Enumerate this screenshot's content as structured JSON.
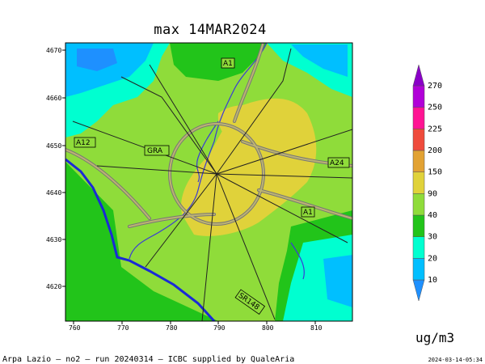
{
  "title": "max 14MAR2024",
  "unit": "ug/m3",
  "footer": "Arpa Lazio — no2 — run 20240314 — ICBC supplied by QualeAria",
  "timestamp": "2024-03-14-05:34",
  "x_ticks": [
    "760",
    "770",
    "780",
    "790",
    "800",
    "810"
  ],
  "y_ticks": [
    "4670",
    "4660",
    "4650",
    "4640",
    "4630",
    "4620"
  ],
  "colorbar": {
    "levels": [
      "10",
      "20",
      "30",
      "40",
      "90",
      "150",
      "200",
      "225",
      "250",
      "270"
    ],
    "colors": [
      "#1e90ff",
      "#00bfff",
      "#00ffd0",
      "#22c41a",
      "#8fdc3a",
      "#e0d23a",
      "#e2a233",
      "#ef4b3c",
      "#ff1493",
      "#b100d8",
      "#8a00c8"
    ]
  },
  "road_labels": [
    "A1",
    "A12",
    "GRA",
    "A24",
    "A1",
    "SR148"
  ]
}
